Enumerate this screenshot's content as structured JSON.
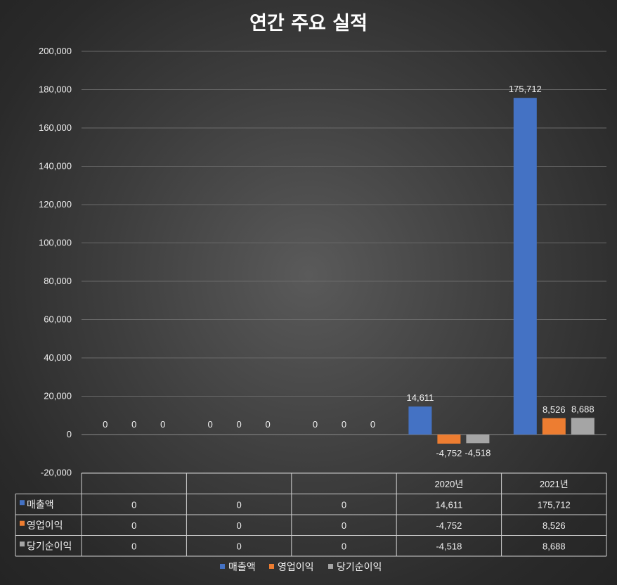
{
  "chart_data": {
    "type": "bar",
    "title": "연간 주요 실적",
    "categories": [
      "",
      "",
      "",
      "2020년",
      "2021년"
    ],
    "series": [
      {
        "name": "매출액",
        "values": [
          0,
          0,
          0,
          14611,
          175712
        ],
        "labels": [
          "0",
          "0",
          "0",
          "14,611",
          "175,712"
        ]
      },
      {
        "name": "영업이익",
        "values": [
          0,
          0,
          0,
          -4752,
          8526
        ],
        "labels": [
          "0",
          "0",
          "0",
          "-4,752",
          "8,526"
        ]
      },
      {
        "name": "당기순이익",
        "values": [
          0,
          0,
          0,
          -4518,
          8688
        ],
        "labels": [
          "0",
          "0",
          "0",
          "-4,518",
          "8,688"
        ]
      }
    ],
    "colors": [
      "#4472c4",
      "#ed7d31",
      "#a5a5a5"
    ],
    "ylim": [
      -20000,
      200000
    ],
    "yticks": [
      -20000,
      0,
      20000,
      40000,
      60000,
      80000,
      100000,
      120000,
      140000,
      160000,
      180000,
      200000
    ],
    "ytick_labels": [
      "-20,000",
      "0",
      "20,000",
      "40,000",
      "60,000",
      "80,000",
      "100,000",
      "120,000",
      "140,000",
      "160,000",
      "180,000",
      "200,000"
    ],
    "grid": true,
    "legend_position": "bottom",
    "data_table": true
  }
}
